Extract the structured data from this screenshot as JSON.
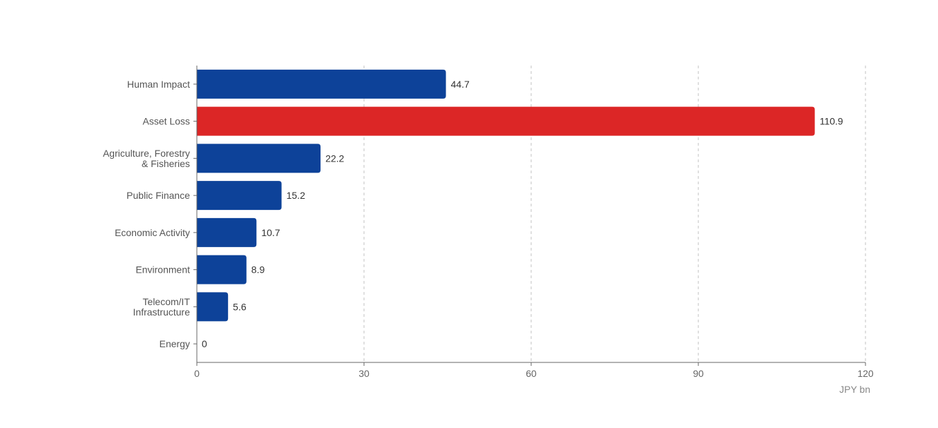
{
  "chart_data": {
    "type": "bar",
    "orientation": "horizontal",
    "categories": [
      "Human Impact",
      "Asset Loss",
      "Agriculture, Forestry & Fisheries",
      "Public Finance",
      "Economic Activity",
      "Environment",
      "Telecom/IT Infrastructure",
      "Energy"
    ],
    "values": [
      44.7,
      110.9,
      22.2,
      15.2,
      10.7,
      8.9,
      5.6,
      0
    ],
    "value_labels": [
      "44.7",
      "110.9",
      "22.2",
      "15.2",
      "10.7",
      "8.9",
      "5.6",
      "0"
    ],
    "highlight_index": 1,
    "xlim": [
      0,
      120
    ],
    "x_ticks": [
      0,
      30,
      60,
      90,
      120
    ],
    "x_unit": "JPY bn",
    "grid": "vertical dashed",
    "colors": {
      "bar": "#0d4299",
      "highlight": "#dc2626",
      "grid": "#cccccc",
      "axis": "#666666"
    }
  }
}
